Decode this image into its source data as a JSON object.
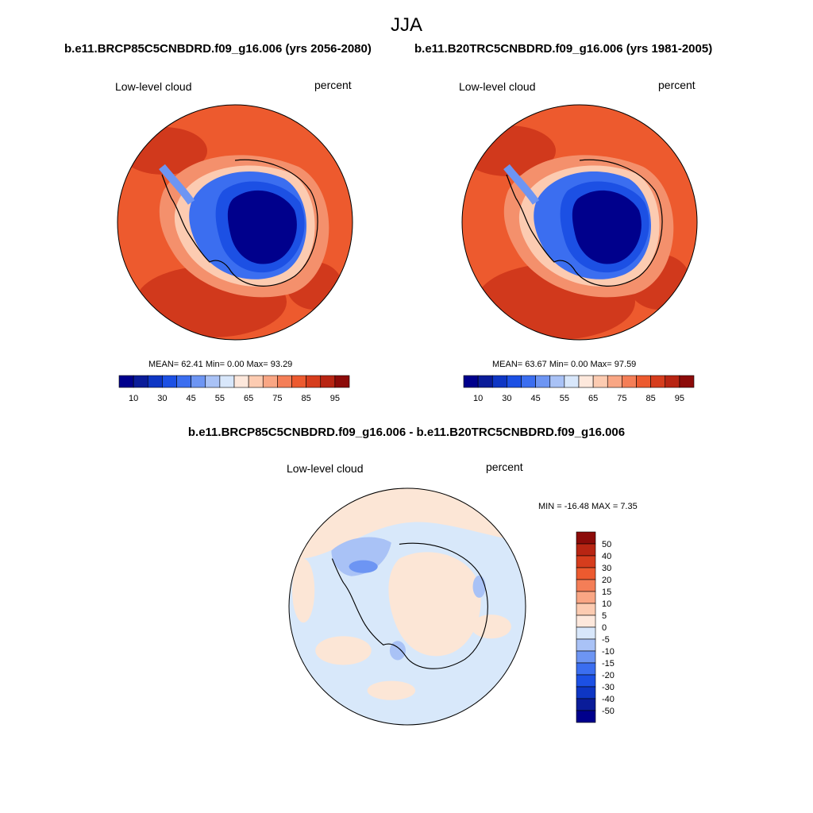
{
  "season": "JJA",
  "colors": {
    "ocean_high": "#ED5A2E",
    "ocean_dark": "#D1391C",
    "ocean_light": "#F4906C",
    "ice_blue": "#1F4ECF",
    "ice_core": "#00008C",
    "diff_pos": "#FCE6D6",
    "diff_neg": "#D8E8FA",
    "coast": "#000000"
  },
  "panels": [
    {
      "title": "b.e11.BRCP85C5CNBDRD.f09_g16.006 (yrs 2056-2080)",
      "left_label": "Low-level cloud",
      "right_label": "percent",
      "stats": "MEAN=  62.41   Min=    0.00   Max=   93.29",
      "colorbar": {
        "colors": [
          "#00008C",
          "#0A1C99",
          "#0E36C4",
          "#1C50E4",
          "#3B6EF0",
          "#6D95F3",
          "#A9C2F6",
          "#D8E7FB",
          "#FDE8DC",
          "#FCCBB1",
          "#F9A684",
          "#F47E57",
          "#EC5A2F",
          "#D63D1D",
          "#B82513",
          "#8C0B09"
        ],
        "labels": [
          "10",
          "30",
          "45",
          "55",
          "65",
          "75",
          "85",
          "95"
        ]
      }
    },
    {
      "title": "b.e11.B20TRC5CNBDRD.f09_g16.006 (yrs 1981-2005)",
      "left_label": "Low-level cloud",
      "right_label": "percent",
      "stats": "MEAN=  63.67   Min=    0.00   Max=   97.59",
      "colorbar": {
        "colors": [
          "#00008C",
          "#0A1C99",
          "#0E36C4",
          "#1C50E4",
          "#3B6EF0",
          "#6D95F3",
          "#A9C2F6",
          "#D8E7FB",
          "#FDE8DC",
          "#FCCBB1",
          "#F9A684",
          "#F47E57",
          "#EC5A2F",
          "#D63D1D",
          "#B82513",
          "#8C0B09"
        ],
        "labels": [
          "10",
          "30",
          "45",
          "55",
          "65",
          "75",
          "85",
          "95"
        ]
      }
    }
  ],
  "difference": {
    "title": "b.e11.BRCP85C5CNBDRD.f09_g16.006 - b.e11.B20TRC5CNBDRD.f09_g16.006",
    "left_label": "Low-level cloud",
    "right_label": "percent",
    "stats": "MIN = -16.48 MAX =   7.35",
    "colorbar": {
      "colors": [
        "#8C0B09",
        "#B82513",
        "#D63D1D",
        "#EC5A2F",
        "#F47E57",
        "#F9A684",
        "#FCCBB1",
        "#FDE8DC",
        "#D8E7FB",
        "#A9C2F6",
        "#6D95F3",
        "#3B6EF0",
        "#1C50E4",
        "#0E36C4",
        "#0A1C99",
        "#00008C"
      ],
      "labels": [
        "50",
        "40",
        "30",
        "20",
        "15",
        "10",
        "5",
        "0",
        "-5",
        "-10",
        "-15",
        "-20",
        "-30",
        "-40",
        "-50"
      ]
    }
  }
}
